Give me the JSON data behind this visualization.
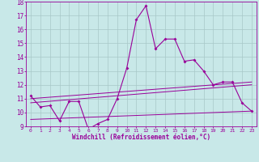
{
  "xlabel": "Windchill (Refroidissement éolien,°C)",
  "xlim": [
    0,
    23
  ],
  "ylim": [
    9,
    18
  ],
  "yticks": [
    9,
    10,
    11,
    12,
    13,
    14,
    15,
    16,
    17,
    18
  ],
  "xticks": [
    0,
    1,
    2,
    3,
    4,
    5,
    6,
    7,
    8,
    9,
    10,
    11,
    12,
    13,
    14,
    15,
    16,
    17,
    18,
    19,
    20,
    21,
    22,
    23
  ],
  "bg_color": "#c8e8e8",
  "grid_color": "#a8c8c8",
  "line_color": "#990099",
  "series": {
    "main": {
      "x": [
        0,
        1,
        2,
        3,
        4,
        5,
        6,
        7,
        8,
        9,
        10,
        11,
        12,
        13,
        14,
        15,
        16,
        17,
        18,
        19,
        20,
        21,
        22,
        23
      ],
      "y": [
        11.2,
        10.4,
        10.5,
        9.4,
        10.8,
        10.8,
        8.8,
        9.2,
        9.5,
        11.0,
        13.2,
        16.7,
        17.7,
        14.6,
        15.3,
        15.3,
        13.7,
        13.8,
        13.0,
        12.0,
        12.2,
        12.2,
        10.7,
        10.1
      ]
    },
    "line1": {
      "x": [
        0,
        23
      ],
      "y": [
        11.0,
        12.2
      ]
    },
    "line2": {
      "x": [
        0,
        23
      ],
      "y": [
        10.7,
        12.0
      ]
    },
    "line3": {
      "x": [
        0,
        23
      ],
      "y": [
        9.5,
        10.1
      ]
    }
  }
}
